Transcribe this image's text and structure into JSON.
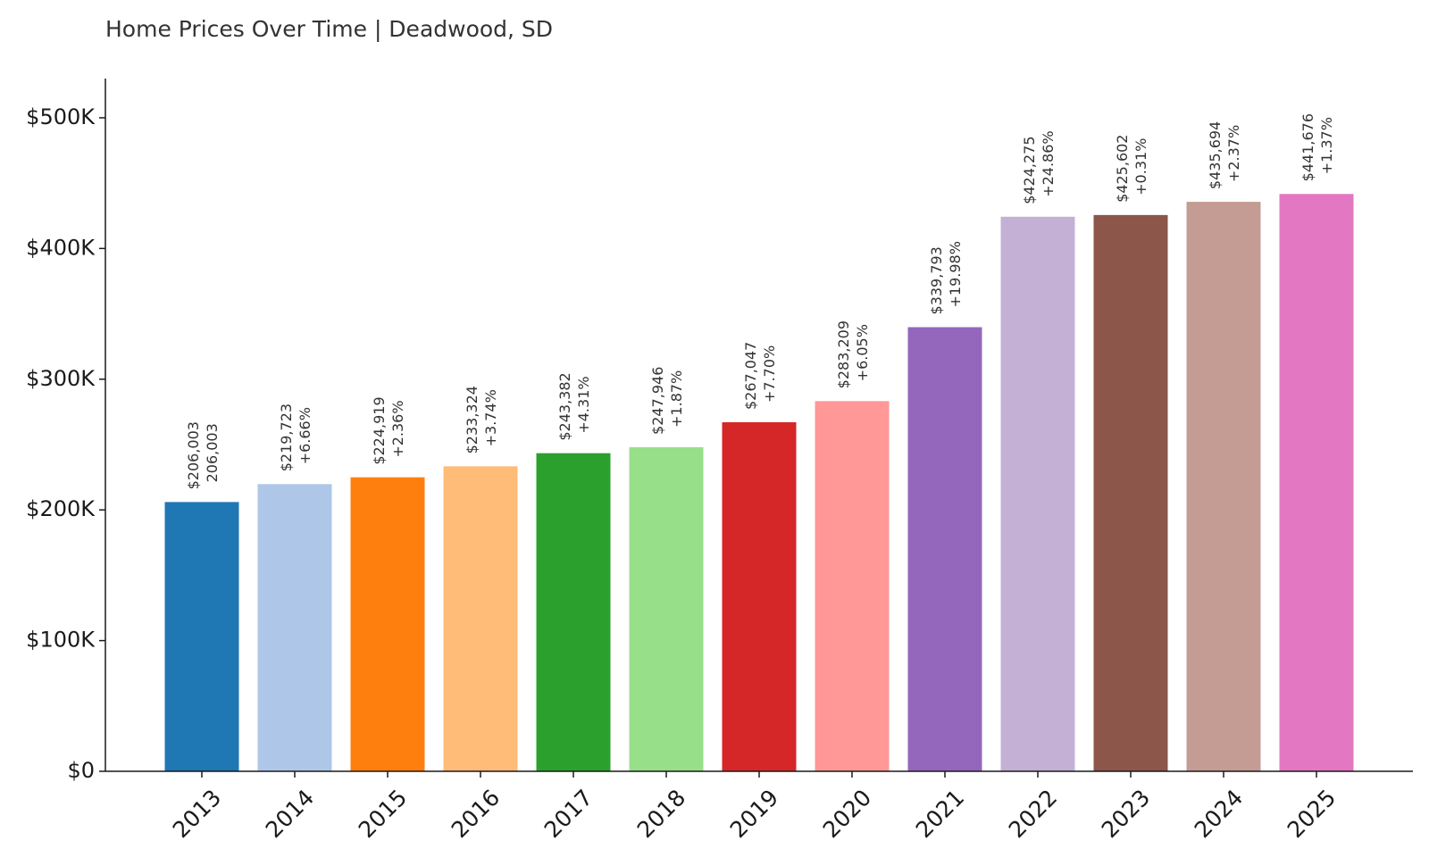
{
  "chart_data": {
    "type": "bar",
    "title": "Home Prices Over Time | Deadwood, SD",
    "xlabel": "",
    "ylabel": "",
    "categories": [
      "2013",
      "2014",
      "2015",
      "2016",
      "2017",
      "2018",
      "2019",
      "2020",
      "2021",
      "2022",
      "2023",
      "2024",
      "2025"
    ],
    "values": [
      206003,
      219723,
      224919,
      233324,
      243382,
      247946,
      267047,
      283209,
      339793,
      424275,
      425602,
      435694,
      441676
    ],
    "value_labels": [
      "$206,003",
      "$219,723",
      "$224,919",
      "$233,324",
      "$243,382",
      "$247,946",
      "$267,047",
      "$283,209",
      "$339,793",
      "$424,275",
      "$425,602",
      "$435,694",
      "$441,676"
    ],
    "change_labels": [
      "206,003",
      "+6.66%",
      "+2.36%",
      "+3.74%",
      "+4.31%",
      "+1.87%",
      "+7.70%",
      "+6.05%",
      "+19.98%",
      "+24.86%",
      "+0.31%",
      "+2.37%",
      "+1.37%"
    ],
    "colors": [
      "#1f77b4",
      "#aec7e8",
      "#ff7f0e",
      "#ffbb78",
      "#2ca02c",
      "#98df8a",
      "#d62728",
      "#ff9896",
      "#9467bd",
      "#c5b0d5",
      "#8c564b",
      "#c49c94",
      "#e377c2"
    ],
    "ylim": [
      0,
      530000
    ],
    "yticks": [
      0,
      100000,
      200000,
      300000,
      400000,
      500000
    ],
    "ytick_labels": [
      "$0",
      "$100K",
      "$200K",
      "$300K",
      "$400K",
      "$500K"
    ],
    "grid": false,
    "legend": "none"
  }
}
